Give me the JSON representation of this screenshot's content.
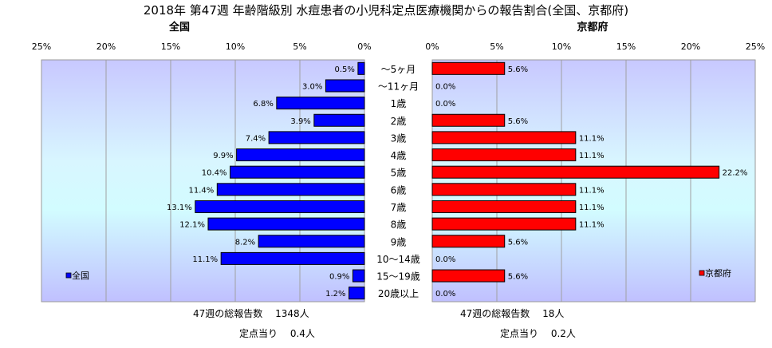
{
  "chart_data": {
    "type": "bar",
    "title": "2018年 第47週 年齢階級別 水痘患者の小児科定点医療機関からの報告割合(全国、京都府)",
    "categories": [
      "～5ヶ月",
      "～11ヶ月",
      "1歳",
      "2歳",
      "3歳",
      "4歳",
      "5歳",
      "6歳",
      "7歳",
      "8歳",
      "9歳",
      "10～14歳",
      "15～19歳",
      "20歳以上"
    ],
    "axis_ticks": [
      "0%",
      "5%",
      "10%",
      "15%",
      "20%",
      "25%"
    ],
    "xlim": [
      0,
      25
    ],
    "panels": [
      {
        "title": "全国",
        "legend": "全国",
        "legend_position": "bottom-left",
        "color": "#0000ff",
        "direction": "left",
        "values": [
          0.5,
          3.0,
          6.8,
          3.9,
          7.4,
          9.9,
          10.4,
          11.4,
          13.1,
          12.1,
          8.2,
          11.1,
          0.9,
          1.2
        ],
        "labels": [
          "0.5%",
          "3.0%",
          "6.8%",
          "3.9%",
          "7.4%",
          "9.9%",
          "10.4%",
          "11.4%",
          "13.1%",
          "12.1%",
          "8.2%",
          "11.1%",
          "0.9%",
          "1.2%"
        ],
        "total_text": "47週の総報告数　 1348人",
        "per_site_text": "定点当り　 0.4人"
      },
      {
        "title": "京都府",
        "legend": "京都府",
        "legend_position": "bottom-right",
        "color": "#ff0000",
        "direction": "right",
        "values": [
          5.6,
          0.0,
          0.0,
          5.6,
          11.1,
          11.1,
          22.2,
          11.1,
          11.1,
          11.1,
          5.6,
          0.0,
          5.6,
          0.0
        ],
        "labels": [
          "5.6%",
          "0.0%",
          "0.0%",
          "5.6%",
          "11.1%",
          "11.1%",
          "22.2%",
          "11.1%",
          "11.1%",
          "11.1%",
          "5.6%",
          "0.0%",
          "5.6%",
          "0.0%"
        ],
        "total_text": "47週の総報告数　 18人",
        "per_site_text": "定点当り　 0.2人"
      }
    ]
  }
}
